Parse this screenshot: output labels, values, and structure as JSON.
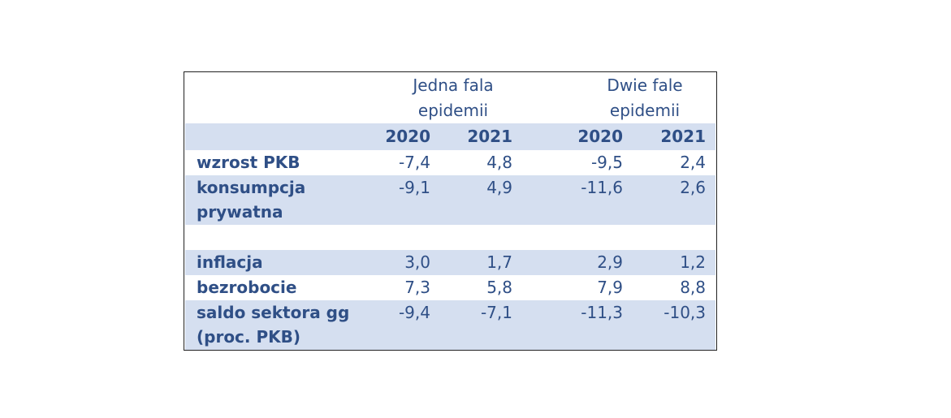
{
  "table": {
    "groups": [
      {
        "line1": "Jedna fala",
        "line2": "epidemii"
      },
      {
        "line1": "Dwie fale",
        "line2": "epidemii"
      }
    ],
    "years": [
      "2020",
      "2021",
      "2020",
      "2021"
    ],
    "rows": [
      {
        "label1": "wzrost PKB",
        "label2": "",
        "values": [
          "-7,4",
          "4,8",
          "-9,5",
          "2,4"
        ]
      },
      {
        "label1": "konsumpcja",
        "label2": "prywatna",
        "values": [
          "-9,1",
          "4,9",
          "-11,6",
          "2,6"
        ]
      },
      {
        "label1": "inflacja",
        "label2": "",
        "values": [
          "3,0",
          "1,7",
          "2,9",
          "1,2"
        ]
      },
      {
        "label1": "bezrobocie",
        "label2": "",
        "values": [
          "7,3",
          "5,8",
          "7,9",
          "8,8"
        ]
      },
      {
        "label1": "saldo sektora gg",
        "label2": "(proc. PKB)",
        "values": [
          "-9,4",
          "-7,1",
          "-11,3",
          "-10,3"
        ]
      }
    ]
  }
}
